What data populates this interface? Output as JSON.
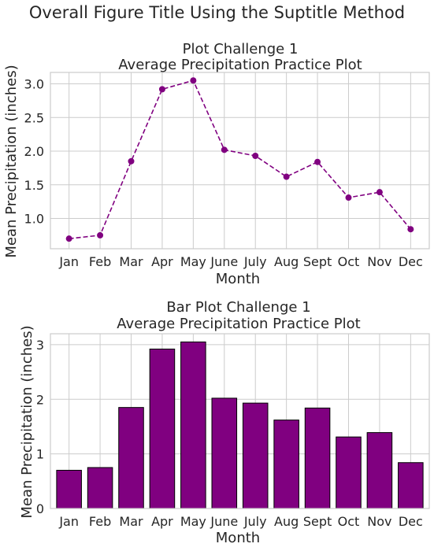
{
  "suptitle": "Overall Figure Title Using the Suptitle Method",
  "chart_data": [
    {
      "type": "line",
      "title": "Plot Challenge 1",
      "subtitle": "Average Precipitation Practice Plot",
      "xlabel": "Month",
      "ylabel": "Mean Precipitation (inches)",
      "categories": [
        "Jan",
        "Feb",
        "Mar",
        "Apr",
        "May",
        "June",
        "July",
        "Aug",
        "Sept",
        "Oct",
        "Nov",
        "Dec"
      ],
      "values": [
        0.7,
        0.75,
        1.85,
        2.92,
        3.05,
        2.02,
        1.93,
        1.62,
        1.84,
        1.31,
        1.39,
        0.84
      ],
      "ylim": [
        0.55,
        3.17
      ],
      "yticks": [
        "1.0",
        "1.5",
        "2.0",
        "2.5",
        "3.0"
      ],
      "ytick_values": [
        1.0,
        1.5,
        2.0,
        2.5,
        3.0
      ],
      "grid": true,
      "line_style": "dashed",
      "marker": "circle",
      "color": "#800080"
    },
    {
      "type": "bar",
      "title": "Bar Plot Challenge 1",
      "subtitle": "Average Precipitation Practice Plot",
      "xlabel": "Month",
      "ylabel": "Mean Precipitation (inches)",
      "categories": [
        "Jan",
        "Feb",
        "Mar",
        "Apr",
        "May",
        "June",
        "July",
        "Aug",
        "Sept",
        "Oct",
        "Nov",
        "Dec"
      ],
      "values": [
        0.7,
        0.75,
        1.85,
        2.92,
        3.05,
        2.02,
        1.93,
        1.62,
        1.84,
        1.31,
        1.39,
        0.84
      ],
      "ylim": [
        0,
        3.2
      ],
      "yticks": [
        "0",
        "1",
        "2",
        "3"
      ],
      "ytick_values": [
        0,
        1,
        2,
        3
      ],
      "grid": true,
      "color": "#800080",
      "edgecolor": "#000000"
    }
  ]
}
